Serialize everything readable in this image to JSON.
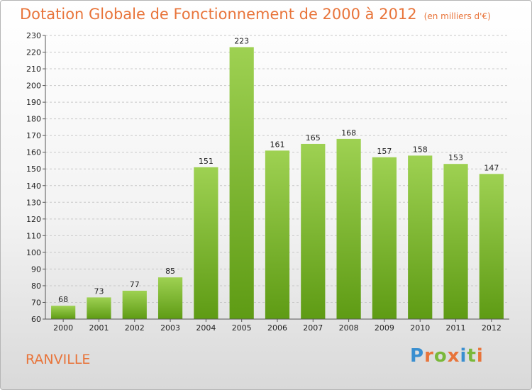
{
  "title": "Dotation Globale de Fonctionnement de 2000 à 2012",
  "unit": "(en milliers d'€)",
  "commune": "RANVILLE",
  "logo": {
    "letters": [
      "P",
      "r",
      "o",
      "x",
      "i",
      "t",
      "i"
    ],
    "colors": [
      "#3a8fd0",
      "#e8743a",
      "#7ab83a",
      "#e8743a",
      "#3a8fd0",
      "#7ab83a",
      "#e8743a"
    ]
  },
  "chart_data": {
    "type": "bar",
    "categories": [
      "2000",
      "2001",
      "2002",
      "2003",
      "2004",
      "2005",
      "2006",
      "2007",
      "2008",
      "2009",
      "2010",
      "2011",
      "2012"
    ],
    "values": [
      68,
      73,
      77,
      85,
      151,
      223,
      161,
      165,
      168,
      157,
      158,
      153,
      147
    ],
    "ylim": [
      60,
      230
    ],
    "yticks": [
      60,
      70,
      80,
      90,
      100,
      110,
      120,
      130,
      140,
      150,
      160,
      170,
      180,
      190,
      200,
      210,
      220,
      230
    ],
    "grid": true,
    "bar_color": "#7cbd2e"
  }
}
